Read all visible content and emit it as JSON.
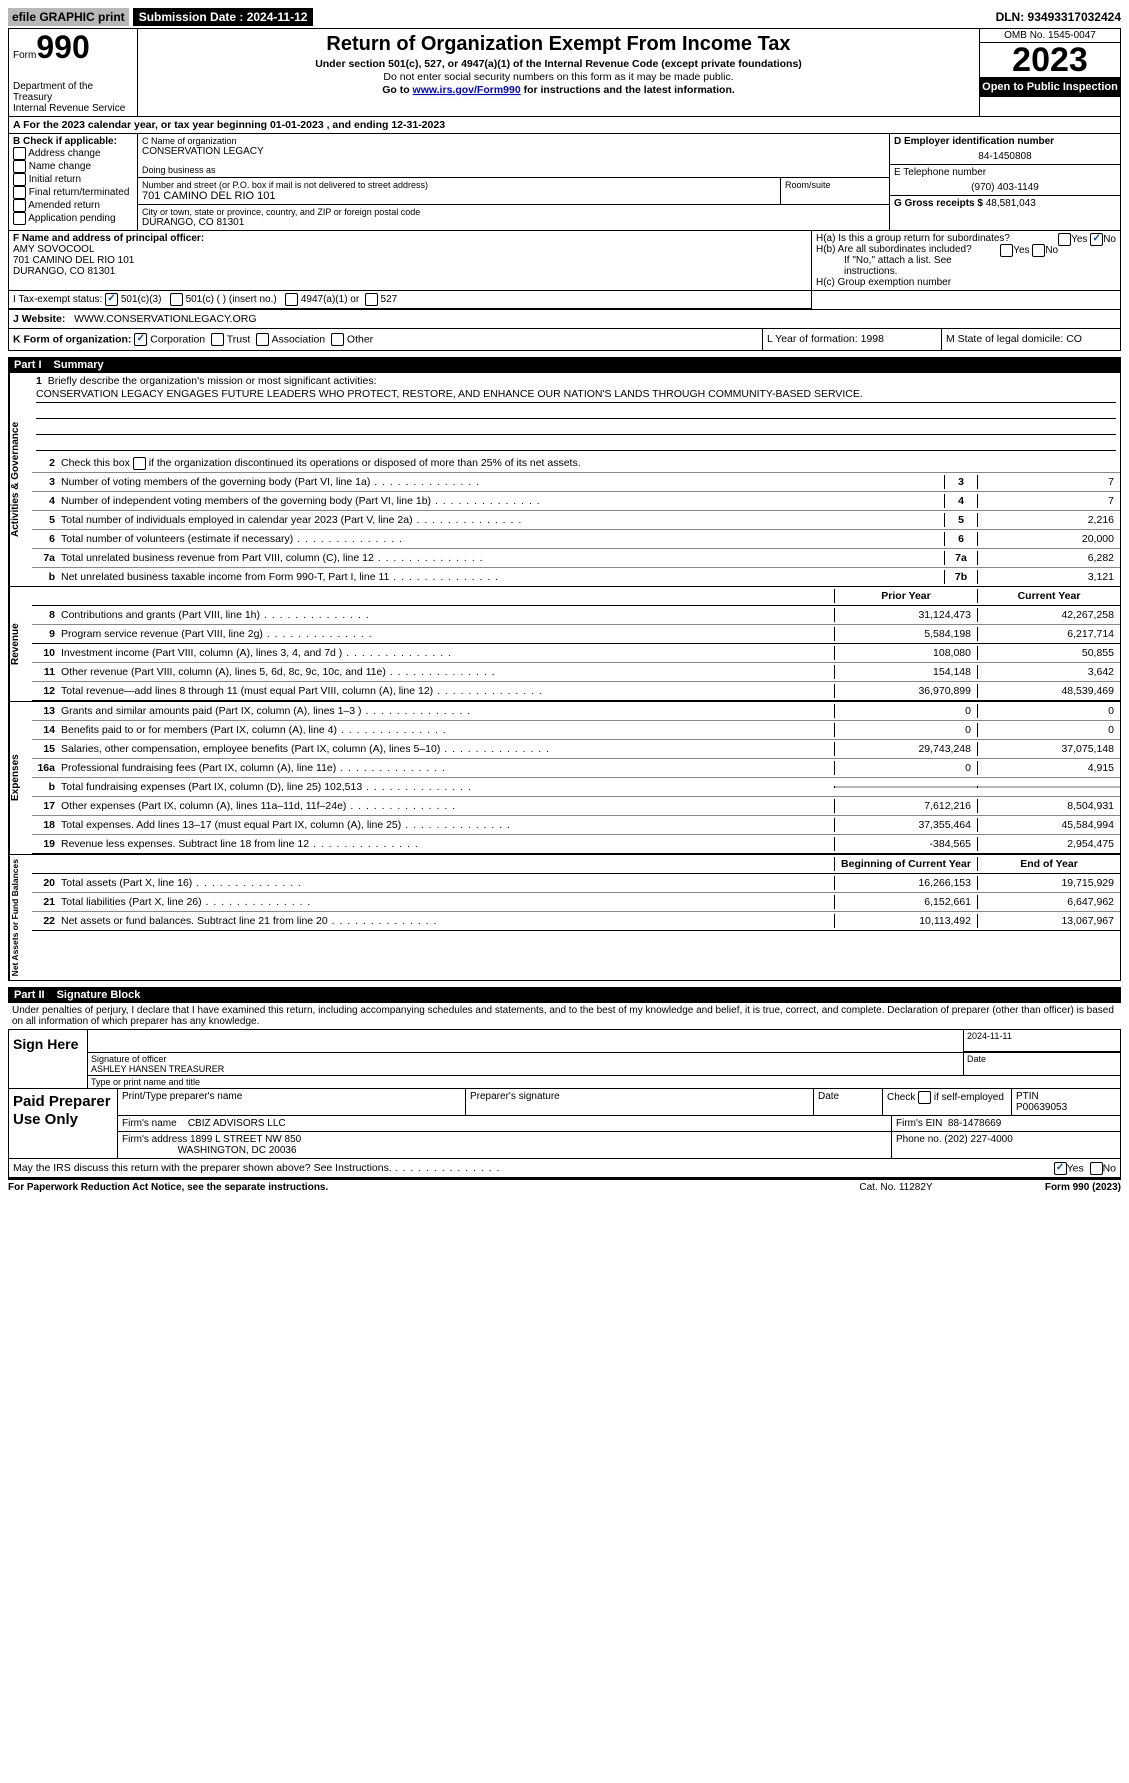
{
  "topbar": {
    "efile": "efile GRAPHIC print",
    "submission": "Submission Date : 2024-11-12",
    "dln": "DLN: 93493317032424"
  },
  "header": {
    "form_prefix": "Form",
    "form_number": "990",
    "dept": "Department of the Treasury\nInternal Revenue Service",
    "title": "Return of Organization Exempt From Income Tax",
    "subtitle1": "Under section 501(c), 527, or 4947(a)(1) of the Internal Revenue Code (except private foundations)",
    "subtitle2": "Do not enter social security numbers on this form as it may be made public.",
    "subtitle3_pre": "Go to ",
    "subtitle3_link": "www.irs.gov/Form990",
    "subtitle3_post": " for instructions and the latest information.",
    "omb": "OMB No. 1545-0047",
    "year": "2023",
    "inspect": "Open to Public Inspection"
  },
  "rowA": "A For the 2023 calendar year, or tax year beginning 01-01-2023   , and ending 12-31-2023",
  "boxB": {
    "label": "B Check if applicable:",
    "items": [
      "Address change",
      "Name change",
      "Initial return",
      "Final return/terminated",
      "Amended return",
      "Application pending"
    ]
  },
  "boxC": {
    "name_label": "C Name of organization",
    "name": "CONSERVATION LEGACY",
    "dba_label": "Doing business as",
    "street_label": "Number and street (or P.O. box if mail is not delivered to street address)",
    "street": "701 CAMINO DEL RIO 101",
    "room_label": "Room/suite",
    "city_label": "City or town, state or province, country, and ZIP or foreign postal code",
    "city": "DURANGO, CO  81301"
  },
  "boxD": {
    "ein_label": "D Employer identification number",
    "ein": "84-1450808",
    "phone_label": "E Telephone number",
    "phone": "(970) 403-1149",
    "gross_label": "G Gross receipts $",
    "gross": "48,581,043"
  },
  "boxF": {
    "label": "F Name and address of principal officer:",
    "name": "AMY SOVOCOOL",
    "addr1": "701 CAMINO DEL RIO 101",
    "addr2": "DURANGO, CO  81301"
  },
  "boxH": {
    "ha": "H(a)  Is this a group return for subordinates?",
    "hb": "H(b)  Are all subordinates included?",
    "hb_note": "If \"No,\" attach a list. See instructions.",
    "hc": "H(c)  Group exemption number"
  },
  "rowI": {
    "label": "I   Tax-exempt status:",
    "opts": [
      "501(c)(3)",
      "501(c) (  ) (insert no.)",
      "4947(a)(1) or",
      "527"
    ]
  },
  "rowJ": {
    "label": "J   Website:",
    "value": "WWW.CONSERVATIONLEGACY.ORG"
  },
  "rowK": {
    "k": "K Form of organization:",
    "opts": [
      "Corporation",
      "Trust",
      "Association",
      "Other"
    ],
    "l": "L Year of formation: 1998",
    "m": "M State of legal domicile: CO"
  },
  "part1": {
    "label": "Part I",
    "title": "Summary"
  },
  "mission": {
    "q": "Briefly describe the organization's mission or most significant activities:",
    "text": "CONSERVATION LEGACY ENGAGES FUTURE LEADERS WHO PROTECT, RESTORE, AND ENHANCE OUR NATION'S LANDS THROUGH COMMUNITY-BASED SERVICE."
  },
  "line2": "Check this box      if the organization discontinued its operations or disposed of more than 25% of its net assets.",
  "summary_lines": [
    {
      "n": "3",
      "d": "Number of voting members of the governing body (Part VI, line 1a)",
      "c": "3",
      "v": "7"
    },
    {
      "n": "4",
      "d": "Number of independent voting members of the governing body (Part VI, line 1b)",
      "c": "4",
      "v": "7"
    },
    {
      "n": "5",
      "d": "Total number of individuals employed in calendar year 2023 (Part V, line 2a)",
      "c": "5",
      "v": "2,216"
    },
    {
      "n": "6",
      "d": "Total number of volunteers (estimate if necessary)",
      "c": "6",
      "v": "20,000"
    },
    {
      "n": "7a",
      "d": "Total unrelated business revenue from Part VIII, column (C), line 12",
      "c": "7a",
      "v": "6,282"
    },
    {
      "n": "b",
      "d": "Net unrelated business taxable income from Form 990-T, Part I, line 11",
      "c": "7b",
      "v": "3,121"
    }
  ],
  "two_col_header": {
    "prior": "Prior Year",
    "current": "Current Year"
  },
  "revenue": [
    {
      "n": "8",
      "d": "Contributions and grants (Part VIII, line 1h)",
      "p": "31,124,473",
      "c": "42,267,258"
    },
    {
      "n": "9",
      "d": "Program service revenue (Part VIII, line 2g)",
      "p": "5,584,198",
      "c": "6,217,714"
    },
    {
      "n": "10",
      "d": "Investment income (Part VIII, column (A), lines 3, 4, and 7d )",
      "p": "108,080",
      "c": "50,855"
    },
    {
      "n": "11",
      "d": "Other revenue (Part VIII, column (A), lines 5, 6d, 8c, 9c, 10c, and 11e)",
      "p": "154,148",
      "c": "3,642"
    },
    {
      "n": "12",
      "d": "Total revenue—add lines 8 through 11 (must equal Part VIII, column (A), line 12)",
      "p": "36,970,899",
      "c": "48,539,469"
    }
  ],
  "expenses": [
    {
      "n": "13",
      "d": "Grants and similar amounts paid (Part IX, column (A), lines 1–3 )",
      "p": "0",
      "c": "0"
    },
    {
      "n": "14",
      "d": "Benefits paid to or for members (Part IX, column (A), line 4)",
      "p": "0",
      "c": "0"
    },
    {
      "n": "15",
      "d": "Salaries, other compensation, employee benefits (Part IX, column (A), lines 5–10)",
      "p": "29,743,248",
      "c": "37,075,148"
    },
    {
      "n": "16a",
      "d": "Professional fundraising fees (Part IX, column (A), line 11e)",
      "p": "0",
      "c": "4,915"
    },
    {
      "n": "b",
      "d": "Total fundraising expenses (Part IX, column (D), line 25) 102,513",
      "p": "",
      "c": "",
      "grey": true
    },
    {
      "n": "17",
      "d": "Other expenses (Part IX, column (A), lines 11a–11d, 11f–24e)",
      "p": "7,612,216",
      "c": "8,504,931"
    },
    {
      "n": "18",
      "d": "Total expenses. Add lines 13–17 (must equal Part IX, column (A), line 25)",
      "p": "37,355,464",
      "c": "45,584,994"
    },
    {
      "n": "19",
      "d": "Revenue less expenses. Subtract line 18 from line 12",
      "p": "-384,565",
      "c": "2,954,475"
    }
  ],
  "net_header": {
    "begin": "Beginning of Current Year",
    "end": "End of Year"
  },
  "netassets": [
    {
      "n": "20",
      "d": "Total assets (Part X, line 16)",
      "p": "16,266,153",
      "c": "19,715,929"
    },
    {
      "n": "21",
      "d": "Total liabilities (Part X, line 26)",
      "p": "6,152,661",
      "c": "6,647,962"
    },
    {
      "n": "22",
      "d": "Net assets or fund balances. Subtract line 21 from line 20",
      "p": "10,113,492",
      "c": "13,067,967"
    }
  ],
  "vtabs": {
    "gov": "Activities & Governance",
    "rev": "Revenue",
    "exp": "Expenses",
    "net": "Net Assets or Fund Balances"
  },
  "part2": {
    "label": "Part II",
    "title": "Signature Block"
  },
  "sig_decl": "Under penalties of perjury, I declare that I have examined this return, including accompanying schedules and statements, and to the best of my knowledge and belief, it is true, correct, and complete. Declaration of preparer (other than officer) is based on all information of which preparer has any knowledge.",
  "sign": {
    "label": "Sign Here",
    "sig_of_officer": "Signature of officer",
    "officer_name": "ASHLEY HANSEN  TREASURER",
    "type_label": "Type or print name and title",
    "date_label": "Date",
    "date": "2024-11-11"
  },
  "paid": {
    "label": "Paid Preparer Use Only",
    "print_name": "Print/Type preparer's name",
    "prep_sig": "Preparer's signature",
    "date": "Date",
    "check_self": "Check        if self-employed",
    "ptin_label": "PTIN",
    "ptin": "P00639053",
    "firm_name_label": "Firm's name",
    "firm_name": "CBIZ ADVISORS LLC",
    "firm_ein_label": "Firm's EIN",
    "firm_ein": "88-1478669",
    "firm_addr_label": "Firm's address",
    "firm_addr1": "1899 L STREET NW 850",
    "firm_addr2": "WASHINGTON, DC  20036",
    "phone_label": "Phone no.",
    "phone": "(202) 227-4000"
  },
  "discuss": "May the IRS discuss this return with the preparer shown above? See Instructions.",
  "footer": {
    "left": "For Paperwork Reduction Act Notice, see the separate instructions.",
    "center": "Cat. No. 11282Y",
    "right": "Form 990 (2023)"
  }
}
